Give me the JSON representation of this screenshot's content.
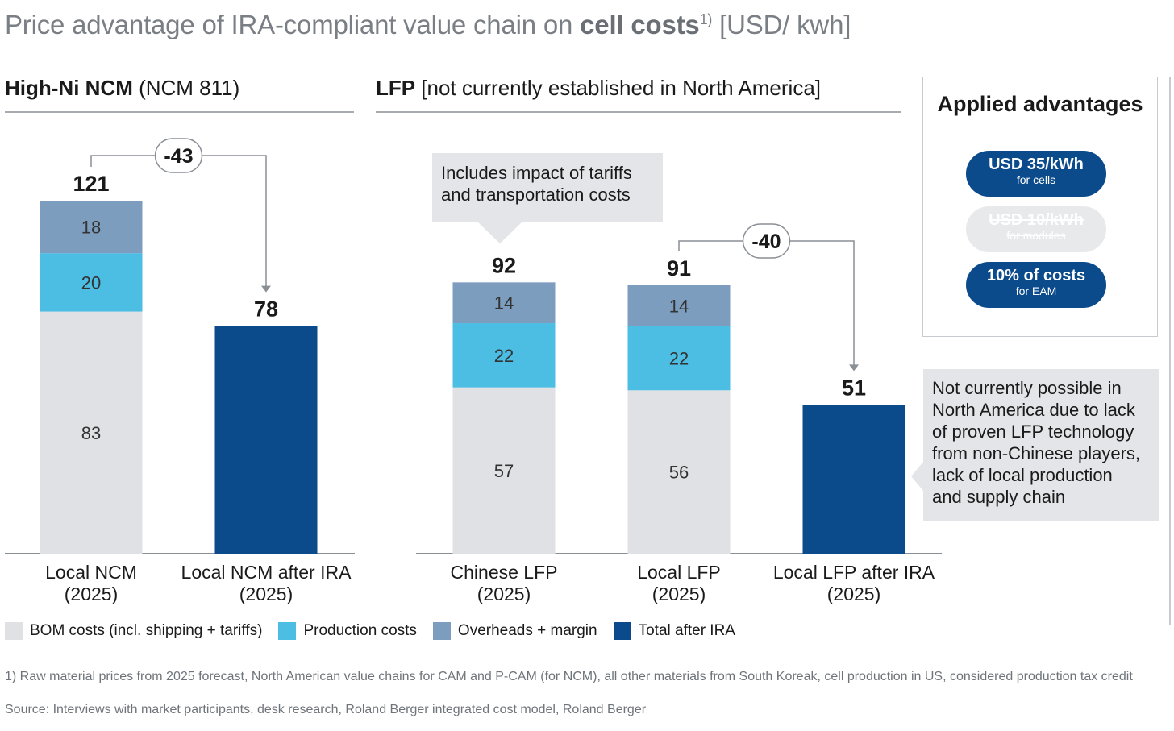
{
  "title": {
    "prefix": "Price advantage of IRA-compliant value chain on ",
    "bold": "cell costs",
    "sup": "1)",
    "suffix": " [USD/ kwh]"
  },
  "sections": [
    {
      "bold": "High-Ni NCM",
      "rest": " (NCM 811)"
    },
    {
      "bold": "LFP",
      "rest": " [not currently established in North America]"
    }
  ],
  "colors": {
    "bom": "#dfe1e4",
    "production": "#4cbde3",
    "overheads": "#7d9dbf",
    "total": "#0b4a8b"
  },
  "chart_data": {
    "type": "bar",
    "stacked": true,
    "unit": "USD/ kwh",
    "categories": [
      "Local NCM\n(2025)",
      "Local NCM after IRA\n(2025)",
      "Chinese LFP\n(2025)",
      "Local LFP\n(2025)",
      "Local LFP after IRA\n(2025)"
    ],
    "category_lines": [
      [
        "Local NCM",
        "(2025)"
      ],
      [
        "Local NCM after IRA",
        "(2025)"
      ],
      [
        "Chinese LFP",
        "(2025)"
      ],
      [
        "Local LFP",
        "(2025)"
      ],
      [
        "Local LFP after IRA",
        "(2025)"
      ]
    ],
    "series": [
      {
        "name": "BOM costs (incl. shipping + tariffs)",
        "values": [
          83,
          null,
          57,
          56,
          null
        ]
      },
      {
        "name": "Production costs",
        "values": [
          20,
          null,
          22,
          22,
          null
        ]
      },
      {
        "name": "Overheads + margin",
        "values": [
          18,
          null,
          14,
          14,
          null
        ]
      },
      {
        "name": "Total after IRA",
        "values": [
          null,
          78,
          null,
          null,
          51
        ]
      }
    ],
    "totals": [
      "121",
      "78",
      "92",
      "91",
      "51"
    ],
    "deltas": [
      {
        "from": 0,
        "to": 1,
        "label": "-43"
      },
      {
        "from": 3,
        "to": 4,
        "label": "-40"
      }
    ],
    "ylim": [
      0,
      121
    ]
  },
  "advantages": {
    "title": "Applied advantages",
    "pills": [
      {
        "main": "USD 35/kWh",
        "sub": "for cells",
        "active": true
      },
      {
        "main": "USD 10/kWh",
        "sub": "for modules",
        "active": false
      },
      {
        "main": "10% of costs",
        "sub": "for EAM",
        "active": true
      }
    ]
  },
  "callouts": {
    "tariffs": [
      "Includes impact of tariffs",
      "and transportation costs"
    ],
    "lfp_note": [
      "Not currently possible in",
      "North America due to lack",
      "of proven LFP technology",
      "from non-Chinese players,",
      "lack of local production",
      "and supply chain"
    ]
  },
  "footnote": "1) Raw material prices from 2025 forecast, North American value chains for CAM and P-CAM (for NCM), all other materials from South Koreak, cell production in US, considered production tax credit",
  "source": "Source: Interviews with market participants, desk research, Roland Berger integrated cost model, Roland Berger"
}
